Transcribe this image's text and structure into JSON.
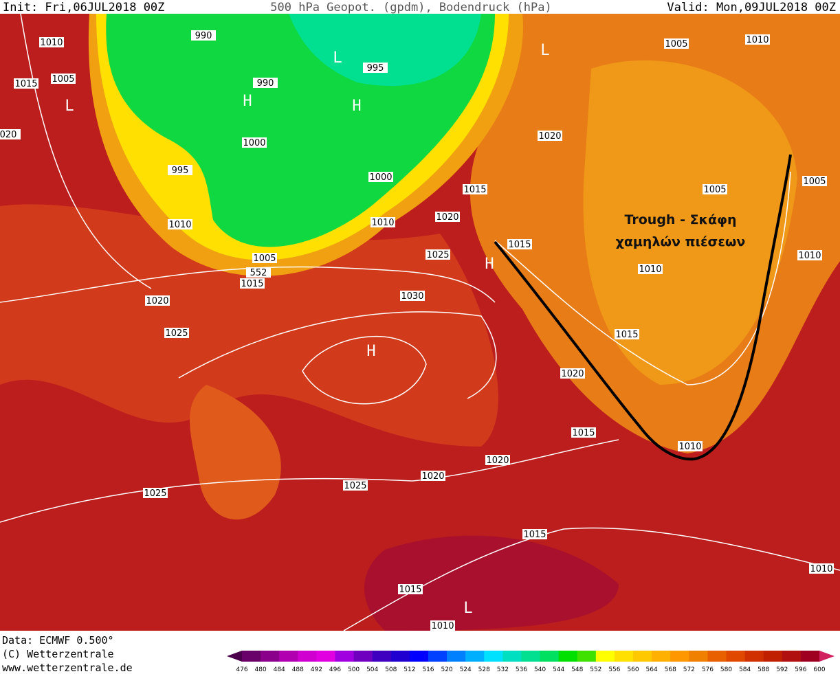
{
  "header": {
    "init": "Init: Fri,06JUL2018 00Z",
    "title": "500 hPa Geopot. (gpdm), Bodendruck (hPa)",
    "valid": "Valid: Mon,09JUL2018 00Z"
  },
  "isobar_labels": [
    1010,
    1005,
    1015,
    990,
    995,
    990,
    1000,
    995,
    1000,
    1010,
    1010,
    1020,
    1015,
    1020,
    1005,
    1010,
    1005,
    1005,
    1015,
    1025,
    1005,
    1015,
    1020,
    1010,
    1010,
    1030,
    1025,
    1015,
    1020,
    1015,
    1010,
    1020,
    1020,
    1025,
    1025,
    1015,
    1010,
    1015,
    1010,
    "020",
    552
  ],
  "pressure_centers": [
    "H",
    "L",
    "H",
    "L",
    "L",
    "H",
    "H",
    "L"
  ],
  "annotation": {
    "line1": "Trough - Σκάφη",
    "line2": "χαμηλών πιέσεων"
  },
  "footer": {
    "data": "Data: ECMWF  0.500°",
    "copyright": "(C) Wetterzentrale",
    "url": "www.wetterzentrale.de"
  },
  "colorbar": {
    "ticks": [
      476,
      480,
      484,
      488,
      492,
      496,
      500,
      504,
      508,
      512,
      516,
      520,
      524,
      528,
      532,
      536,
      540,
      544,
      548,
      552,
      556,
      560,
      564,
      568,
      572,
      576,
      580,
      584,
      588,
      592,
      596,
      600
    ],
    "colors": [
      "#4b004b",
      "#6a006a",
      "#8a008a",
      "#b000b0",
      "#d000d0",
      "#e000e0",
      "#a000e0",
      "#7000c0",
      "#4000c0",
      "#2000d0",
      "#0000ff",
      "#0040ff",
      "#0080ff",
      "#00b0ff",
      "#00e0ff",
      "#00e0c0",
      "#00e090",
      "#00e060",
      "#00e000",
      "#40e000",
      "#ffff00",
      "#ffe000",
      "#ffc800",
      "#ffb000",
      "#ff9800",
      "#f08000",
      "#e86000",
      "#e04800",
      "#d03000",
      "#c02000",
      "#b01010",
      "#a00020",
      "#d02060"
    ]
  }
}
